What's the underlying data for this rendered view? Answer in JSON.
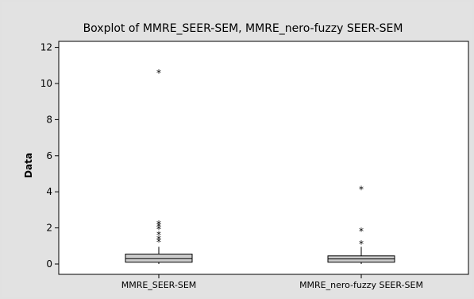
{
  "chart_data": {
    "type": "boxplot",
    "title": "Boxplot of MMRE_SEER-SEM, MMRE_nero-fuzzy SEER-SEM",
    "ylabel": "Data",
    "xlabel": "",
    "ylim": [
      -0.4,
      12.2
    ],
    "yticks": [
      0,
      2,
      4,
      6,
      8,
      10,
      12
    ],
    "grid": false,
    "categories": [
      "MMRE_SEER-SEM",
      "MMRE_nero-fuzzy SEER-SEM"
    ],
    "series": [
      {
        "q1": 0.1,
        "median": 0.3,
        "q3": 0.55,
        "whisker_low": 0.0,
        "whisker_high": 0.95,
        "outliers": [
          1.3,
          1.45,
          1.7,
          2.0,
          2.15,
          2.3,
          10.65
        ]
      },
      {
        "q1": 0.1,
        "median": 0.28,
        "q3": 0.45,
        "whisker_low": 0.0,
        "whisker_high": 0.95,
        "outliers": [
          1.2,
          1.9,
          4.2
        ]
      }
    ],
    "box_color": "#cccccc",
    "plot_background": "#ffffff",
    "frame_color": "#e1e1e1"
  }
}
